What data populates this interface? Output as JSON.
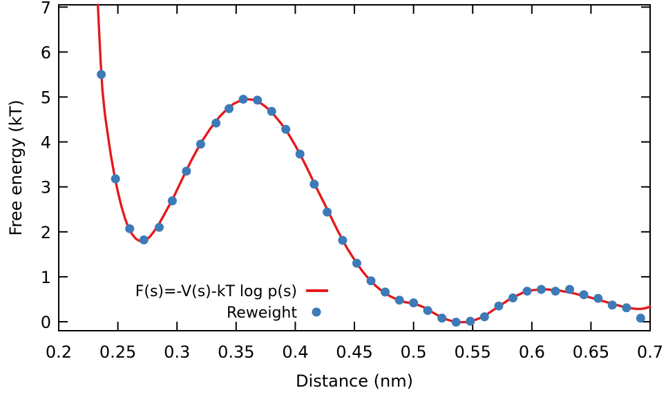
{
  "chart_data": {
    "type": "line",
    "title": "",
    "xlabel": "Distance (nm)",
    "ylabel": "Free energy (kT)",
    "xlim": [
      0.2,
      0.7
    ],
    "ylim": [
      -0.2,
      7.05
    ],
    "grid": false,
    "legend_position": "inside-bottom-left",
    "axis_color": "#000000",
    "background_color": "#ffffff",
    "x_ticks": [
      0.2,
      0.25,
      0.3,
      0.35,
      0.4,
      0.45,
      0.5,
      0.55,
      0.6,
      0.65,
      0.7
    ],
    "x_tick_labels": [
      "0.2",
      "0.25",
      "0.3",
      "0.35",
      "0.4",
      "0.45",
      "0.5",
      "0.55",
      "0.6",
      "0.65",
      "0.7"
    ],
    "y_ticks": [
      0,
      1,
      2,
      3,
      4,
      5,
      6,
      7
    ],
    "y_tick_labels": [
      "0",
      "1",
      "2",
      "3",
      "4",
      "5",
      "6",
      "7"
    ],
    "series": [
      {
        "name": "F(s)=-V(s)-kT log p(s)",
        "type": "line",
        "color": "#e4191c",
        "points": [
          [
            0.2331,
            7.05
          ],
          [
            0.234,
            6.55
          ],
          [
            0.2355,
            5.75
          ],
          [
            0.237,
            5.15
          ],
          [
            0.239,
            4.62
          ],
          [
            0.241,
            4.25
          ],
          [
            0.244,
            3.72
          ],
          [
            0.247,
            3.27
          ],
          [
            0.25,
            2.89
          ],
          [
            0.253,
            2.57
          ],
          [
            0.256,
            2.3
          ],
          [
            0.259,
            2.09
          ],
          [
            0.262,
            1.95
          ],
          [
            0.265,
            1.85
          ],
          [
            0.268,
            1.8
          ],
          [
            0.271,
            1.79
          ],
          [
            0.274,
            1.82
          ],
          [
            0.277,
            1.89
          ],
          [
            0.28,
            1.99
          ],
          [
            0.284,
            2.14
          ],
          [
            0.288,
            2.33
          ],
          [
            0.292,
            2.52
          ],
          [
            0.296,
            2.71
          ],
          [
            0.3,
            2.93
          ],
          [
            0.304,
            3.15
          ],
          [
            0.308,
            3.37
          ],
          [
            0.312,
            3.58
          ],
          [
            0.316,
            3.78
          ],
          [
            0.32,
            3.97
          ],
          [
            0.324,
            4.13
          ],
          [
            0.328,
            4.29
          ],
          [
            0.332,
            4.43
          ],
          [
            0.336,
            4.56
          ],
          [
            0.34,
            4.67
          ],
          [
            0.344,
            4.77
          ],
          [
            0.348,
            4.85
          ],
          [
            0.352,
            4.9
          ],
          [
            0.356,
            4.93
          ],
          [
            0.36,
            4.95
          ],
          [
            0.364,
            4.94
          ],
          [
            0.368,
            4.9
          ],
          [
            0.372,
            4.84
          ],
          [
            0.376,
            4.76
          ],
          [
            0.38,
            4.66
          ],
          [
            0.384,
            4.54
          ],
          [
            0.388,
            4.41
          ],
          [
            0.392,
            4.27
          ],
          [
            0.396,
            4.1
          ],
          [
            0.4,
            3.92
          ],
          [
            0.404,
            3.73
          ],
          [
            0.408,
            3.52
          ],
          [
            0.412,
            3.31
          ],
          [
            0.416,
            3.08
          ],
          [
            0.42,
            2.87
          ],
          [
            0.424,
            2.66
          ],
          [
            0.428,
            2.45
          ],
          [
            0.432,
            2.23
          ],
          [
            0.436,
            2.02
          ],
          [
            0.44,
            1.82
          ],
          [
            0.444,
            1.63
          ],
          [
            0.448,
            1.46
          ],
          [
            0.452,
            1.3
          ],
          [
            0.456,
            1.15
          ],
          [
            0.46,
            1.02
          ],
          [
            0.464,
            0.9
          ],
          [
            0.468,
            0.8
          ],
          [
            0.472,
            0.71
          ],
          [
            0.476,
            0.64
          ],
          [
            0.48,
            0.57
          ],
          [
            0.484,
            0.52
          ],
          [
            0.488,
            0.47
          ],
          [
            0.492,
            0.44
          ],
          [
            0.496,
            0.42
          ],
          [
            0.5,
            0.4
          ],
          [
            0.504,
            0.37
          ],
          [
            0.508,
            0.33
          ],
          [
            0.512,
            0.27
          ],
          [
            0.516,
            0.21
          ],
          [
            0.52,
            0.15
          ],
          [
            0.524,
            0.1
          ],
          [
            0.528,
            0.05
          ],
          [
            0.532,
            0.02
          ],
          [
            0.536,
            0.0
          ],
          [
            0.54,
            -0.01
          ],
          [
            0.544,
            -0.01
          ],
          [
            0.548,
            0.01
          ],
          [
            0.552,
            0.04
          ],
          [
            0.556,
            0.08
          ],
          [
            0.56,
            0.13
          ],
          [
            0.564,
            0.2
          ],
          [
            0.568,
            0.27
          ],
          [
            0.572,
            0.34
          ],
          [
            0.576,
            0.41
          ],
          [
            0.58,
            0.48
          ],
          [
            0.584,
            0.54
          ],
          [
            0.588,
            0.59
          ],
          [
            0.592,
            0.64
          ],
          [
            0.596,
            0.67
          ],
          [
            0.6,
            0.7
          ],
          [
            0.604,
            0.71
          ],
          [
            0.608,
            0.72
          ],
          [
            0.612,
            0.72
          ],
          [
            0.616,
            0.71
          ],
          [
            0.62,
            0.7
          ],
          [
            0.624,
            0.69
          ],
          [
            0.628,
            0.67
          ],
          [
            0.632,
            0.65
          ],
          [
            0.636,
            0.63
          ],
          [
            0.64,
            0.6
          ],
          [
            0.644,
            0.58
          ],
          [
            0.648,
            0.55
          ],
          [
            0.652,
            0.52
          ],
          [
            0.656,
            0.49
          ],
          [
            0.66,
            0.46
          ],
          [
            0.664,
            0.43
          ],
          [
            0.668,
            0.4
          ],
          [
            0.672,
            0.37
          ],
          [
            0.676,
            0.34
          ],
          [
            0.68,
            0.32
          ],
          [
            0.684,
            0.3
          ],
          [
            0.688,
            0.285
          ],
          [
            0.692,
            0.285
          ],
          [
            0.696,
            0.3
          ],
          [
            0.7,
            0.335
          ]
        ]
      },
      {
        "name": "Reweight",
        "type": "scatter",
        "color": "#3d7ab8",
        "points": [
          [
            0.236,
            5.5
          ],
          [
            0.248,
            3.18
          ],
          [
            0.26,
            2.07
          ],
          [
            0.272,
            1.82
          ],
          [
            0.285,
            2.1
          ],
          [
            0.296,
            2.69
          ],
          [
            0.308,
            3.35
          ],
          [
            0.32,
            3.95
          ],
          [
            0.333,
            4.42
          ],
          [
            0.344,
            4.74
          ],
          [
            0.356,
            4.95
          ],
          [
            0.368,
            4.93
          ],
          [
            0.38,
            4.68
          ],
          [
            0.392,
            4.28
          ],
          [
            0.404,
            3.73
          ],
          [
            0.416,
            3.06
          ],
          [
            0.427,
            2.44
          ],
          [
            0.44,
            1.81
          ],
          [
            0.452,
            1.3
          ],
          [
            0.464,
            0.91
          ],
          [
            0.476,
            0.66
          ],
          [
            0.488,
            0.48
          ],
          [
            0.5,
            0.42
          ],
          [
            0.512,
            0.25
          ],
          [
            0.524,
            0.08
          ],
          [
            0.536,
            -0.01
          ],
          [
            0.548,
            0.01
          ],
          [
            0.56,
            0.11
          ],
          [
            0.572,
            0.35
          ],
          [
            0.584,
            0.53
          ],
          [
            0.596,
            0.68
          ],
          [
            0.608,
            0.72
          ],
          [
            0.62,
            0.68
          ],
          [
            0.632,
            0.72
          ],
          [
            0.644,
            0.6
          ],
          [
            0.656,
            0.52
          ],
          [
            0.668,
            0.37
          ],
          [
            0.68,
            0.31
          ],
          [
            0.692,
            0.08
          ]
        ]
      }
    ]
  },
  "legend": {
    "line_label": "F(s)=-V(s)-kT log p(s)",
    "scatter_label": "Reweight"
  }
}
